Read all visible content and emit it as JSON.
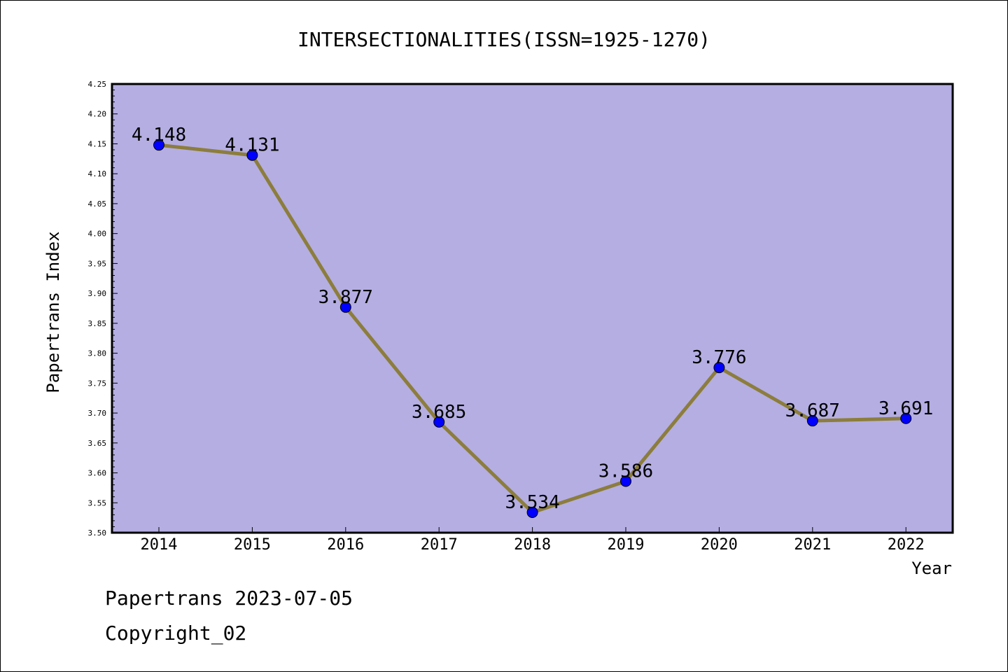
{
  "chart_data": {
    "type": "line",
    "title": "INTERSECTIONALITIES(ISSN=1925-1270)",
    "xlabel": "Year",
    "ylabel": "Papertrans Index",
    "categories": [
      "2014",
      "2015",
      "2016",
      "2017",
      "2018",
      "2019",
      "2020",
      "2021",
      "2022"
    ],
    "values": [
      4.148,
      4.131,
      3.877,
      3.685,
      3.534,
      3.586,
      3.776,
      3.687,
      3.691
    ],
    "data_labels": [
      "4.148",
      "4.131",
      "3.877",
      "3.685",
      "3.534",
      "3.586",
      "3.776",
      "3.687",
      "3.691"
    ],
    "ylim": [
      3.5,
      4.25
    ],
    "y_ticks": [
      "3.50",
      "3.55",
      "3.60",
      "3.65",
      "3.70",
      "3.75",
      "3.80",
      "3.85",
      "3.90",
      "3.95",
      "4.00",
      "4.05",
      "4.10",
      "4.15",
      "4.20",
      "4.25"
    ],
    "grid": false,
    "colors": {
      "plot_background": "#b4aee3",
      "line": "#8c7d3c",
      "marker": "#0000ff"
    }
  },
  "footer": {
    "line1": "Papertrans 2023-07-05",
    "line2": "Copyright_02"
  }
}
